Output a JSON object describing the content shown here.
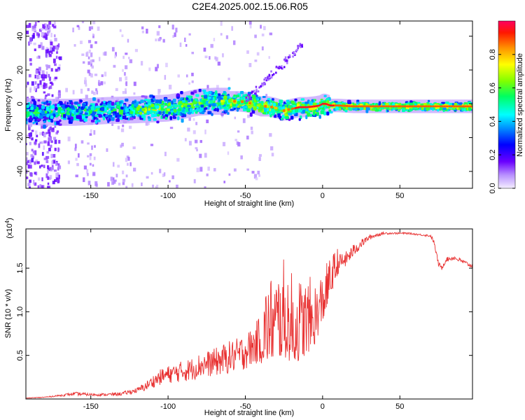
{
  "figure": {
    "title": "C2E4.2025.002.15.06.R05"
  },
  "chart_data": [
    {
      "type": "heatmap",
      "xlabel": "Height of straight line (km)",
      "ylabel": "Frequency (Hz)",
      "xlim": [
        -192,
        97
      ],
      "ylim": [
        -50,
        49
      ],
      "xticks": [
        -150,
        -100,
        -50,
        0,
        50
      ],
      "xtick_labels": [
        "-150",
        "-100",
        "-50",
        "0",
        "50"
      ],
      "yticks": [
        -40,
        -20,
        0,
        20,
        40
      ],
      "ytick_labels": [
        "-40",
        "-20",
        "0",
        "20",
        "40"
      ],
      "ridge_x": [
        -192,
        -180,
        -160,
        -140,
        -120,
        -100,
        -90,
        -80,
        -70,
        -60,
        -55,
        -50,
        -45,
        -40,
        -35,
        -30,
        -25,
        -20,
        -15,
        -10,
        -5,
        -2,
        0,
        2,
        5,
        10,
        20,
        40,
        60,
        80,
        97
      ],
      "ridge_y": [
        -4.5,
        -5.0,
        -5.0,
        -4.0,
        -3.5,
        -2.5,
        -1.0,
        1.0,
        1.5,
        1.5,
        1.5,
        1.0,
        0.0,
        -1.5,
        -1.5,
        -2.5,
        -4.0,
        -3.0,
        -2.0,
        -2.0,
        -1.5,
        -1.0,
        0.0,
        0.0,
        -1.0,
        -1.0,
        -1.5,
        -1.5,
        -1.5,
        -1.5,
        -1.5
      ],
      "colorbar": {
        "label": "Normalized spectral amplitude",
        "range": [
          0,
          1
        ],
        "ticks": [
          0.0,
          0.2,
          0.4,
          0.6,
          0.8
        ],
        "tick_labels": [
          "0.0",
          "0.2",
          "0.4",
          "0.6",
          "0.8"
        ]
      }
    },
    {
      "type": "line",
      "xlabel": "Height of straight line (km)",
      "ylabel": "SNR (10 * v/v)",
      "multiplier": "(x10",
      "multiplier_exp": "4",
      "multiplier_close": ")",
      "xlim": [
        -192,
        97
      ],
      "ylim": [
        0,
        1.95
      ],
      "xticks": [
        -150,
        -100,
        -50,
        0,
        50
      ],
      "xtick_labels": [
        "-150",
        "-100",
        "-50",
        "0",
        "50"
      ],
      "yticks": [
        0.5,
        1.0,
        1.5
      ],
      "ytick_labels": [
        "0.5",
        "1.0",
        "1.5"
      ],
      "series": [
        {
          "name": "SNR",
          "color": "#e83030",
          "x": [
            -192,
            -180,
            -170,
            -160,
            -150,
            -140,
            -130,
            -120,
            -115,
            -110,
            -105,
            -100,
            -95,
            -90,
            -85,
            -80,
            -75,
            -70,
            -65,
            -60,
            -55,
            -50,
            -45,
            -40,
            -35,
            -30,
            -25,
            -20,
            -15,
            -10,
            -5,
            0,
            5,
            10,
            15,
            20,
            25,
            30,
            35,
            40,
            45,
            50,
            55,
            60,
            65,
            70,
            72,
            75,
            77,
            80,
            85,
            90,
            97
          ],
          "y": [
            0.01,
            0.02,
            0.04,
            0.06,
            0.05,
            0.05,
            0.06,
            0.1,
            0.14,
            0.2,
            0.25,
            0.28,
            0.3,
            0.32,
            0.34,
            0.38,
            0.4,
            0.42,
            0.45,
            0.48,
            0.5,
            0.55,
            0.6,
            0.7,
            0.8,
            0.85,
            0.9,
            0.8,
            0.8,
            0.85,
            0.9,
            1.1,
            1.35,
            1.55,
            1.6,
            1.7,
            1.78,
            1.85,
            1.88,
            1.9,
            1.9,
            1.9,
            1.9,
            1.89,
            1.88,
            1.87,
            1.8,
            1.55,
            1.5,
            1.6,
            1.62,
            1.58,
            1.52
          ],
          "noise": [
            0.005,
            0.01,
            0.02,
            0.04,
            0.03,
            0.03,
            0.04,
            0.06,
            0.1,
            0.14,
            0.18,
            0.2,
            0.22,
            0.25,
            0.26,
            0.28,
            0.3,
            0.32,
            0.35,
            0.38,
            0.4,
            0.42,
            0.45,
            0.55,
            0.65,
            0.7,
            0.75,
            0.7,
            0.65,
            0.6,
            0.5,
            0.4,
            0.3,
            0.22,
            0.18,
            0.15,
            0.1,
            0.06,
            0.04,
            0.03,
            0.02,
            0.02,
            0.02,
            0.02,
            0.02,
            0.03,
            0.05,
            0.06,
            0.05,
            0.05,
            0.05,
            0.05,
            0.05
          ]
        }
      ]
    }
  ]
}
